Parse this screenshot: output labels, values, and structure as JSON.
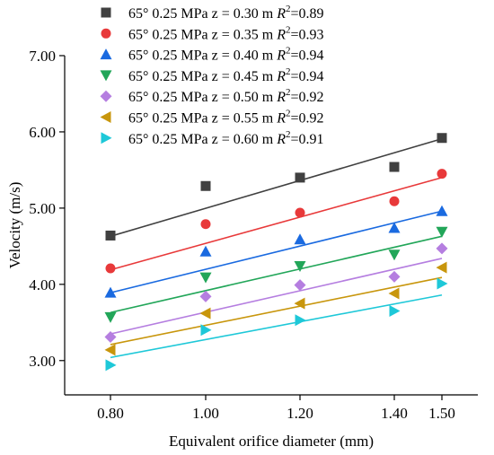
{
  "chart_data": {
    "type": "scatter",
    "xlabel": "Equivalent orifice diameter (mm)",
    "ylabel": "Velocity (m/s)",
    "x_ticks": [
      "0.80",
      "1.00",
      "1.20",
      "1.40",
      "1.50"
    ],
    "x_tick_values": [
      0.8,
      1.0,
      1.2,
      1.4,
      1.5
    ],
    "y_ticks": [
      "3.00",
      "4.00",
      "5.00",
      "6.00",
      "7.00"
    ],
    "y_tick_values": [
      3.0,
      4.0,
      5.0,
      6.0,
      7.0
    ],
    "ylim": [
      2.55,
      7.0
    ],
    "grid": false,
    "legend_position": "top",
    "series": [
      {
        "name": "65° 0.25 MPa  z = 0.30 m",
        "r2": "0.89",
        "marker": "square",
        "color": "#404040",
        "values": [
          4.64,
          5.29,
          5.4,
          5.54,
          5.92
        ],
        "fit": [
          4.63,
          5.91
        ]
      },
      {
        "name": "65° 0.25 MPa  z = 0.35 m",
        "r2": "0.93",
        "marker": "circle",
        "color": "#e8393a",
        "values": [
          4.21,
          4.79,
          4.94,
          5.09,
          5.45
        ],
        "fit": [
          4.19,
          5.4
        ]
      },
      {
        "name": "65° 0.25 MPa  z = 0.40 m",
        "r2": "0.94",
        "marker": "triangle-up",
        "color": "#1a6ae0",
        "values": [
          3.89,
          4.43,
          4.59,
          4.74,
          4.96
        ],
        "fit": [
          3.89,
          4.96
        ]
      },
      {
        "name": "65° 0.25 MPa  z = 0.45 m",
        "r2": "0.94",
        "marker": "triangle-down",
        "color": "#22a659",
        "values": [
          3.57,
          4.09,
          4.24,
          4.39,
          4.69
        ],
        "fit": [
          3.63,
          4.63
        ]
      },
      {
        "name": "65° 0.25 MPa  z = 0.50 m",
        "r2": "0.92",
        "marker": "diamond",
        "color": "#b57ee0",
        "values": [
          3.31,
          3.84,
          3.99,
          4.1,
          4.47
        ],
        "fit": [
          3.35,
          4.34
        ]
      },
      {
        "name": "65° 0.25 MPa  z = 0.55 m",
        "r2": "0.92",
        "marker": "triangle-left",
        "color": "#c8960c",
        "values": [
          3.14,
          3.62,
          3.75,
          3.88,
          4.22
        ],
        "fit": [
          3.21,
          4.09
        ]
      },
      {
        "name": "65° 0.25 MPa  z = 0.60 m",
        "r2": "0.91",
        "marker": "triangle-right",
        "color": "#1ec8d8",
        "values": [
          2.94,
          3.4,
          3.53,
          3.65,
          4.01
        ],
        "fit": [
          3.04,
          3.86
        ]
      }
    ]
  },
  "legend": {
    "r_symbol": "R",
    "r_exp": "2",
    "eq": "="
  }
}
